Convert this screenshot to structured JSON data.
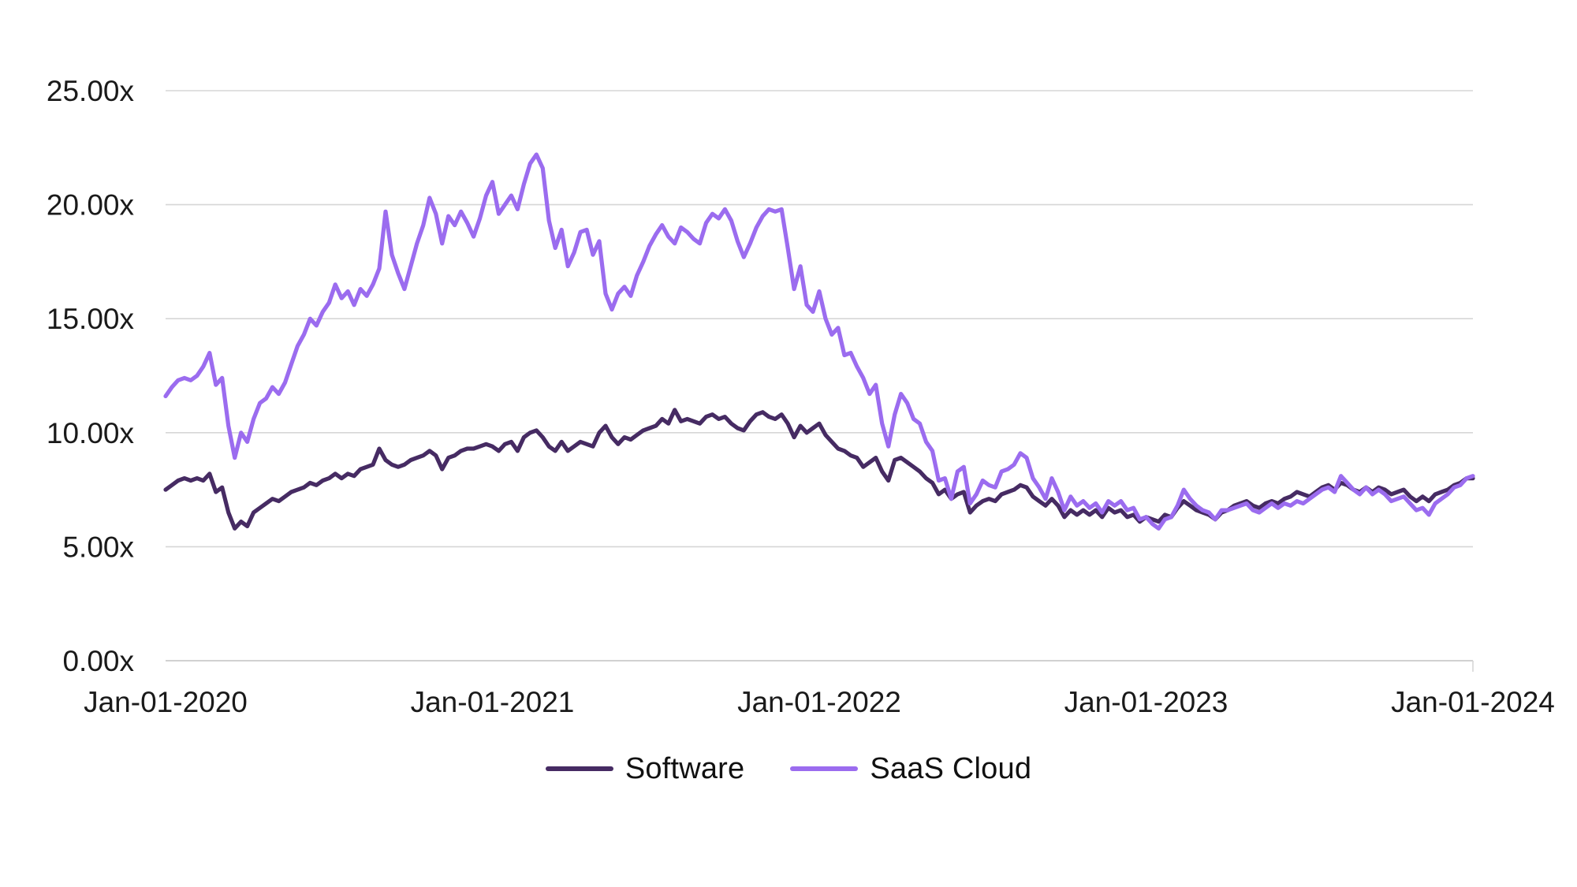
{
  "chart_data": {
    "type": "line",
    "title": "",
    "xlabel": "",
    "ylabel": "",
    "x_start_date": "2020-01-01",
    "x_end_date": "2024-01-01",
    "x_interval": "weekly",
    "x_tick_labels": [
      "Jan-01-2020",
      "Jan-01-2021",
      "Jan-01-2022",
      "Jan-01-2023",
      "Jan-01-2024"
    ],
    "y_ticks": [
      0,
      5,
      10,
      15,
      20,
      25
    ],
    "y_tick_labels": [
      "0.00x",
      "5.00x",
      "10.00x",
      "15.00x",
      "20.00x",
      "25.00x"
    ],
    "ylim": [
      0,
      25
    ],
    "grid": "horizontal",
    "grid_color": "#d6d6d6",
    "baseline_color": "#c2c2c2",
    "legend_position": "bottom-center",
    "series": [
      {
        "name": "Software",
        "color": "#462b63",
        "values": [
          7.5,
          7.7,
          7.9,
          8.0,
          7.9,
          8.0,
          7.9,
          8.2,
          7.4,
          7.6,
          6.5,
          5.8,
          6.1,
          5.9,
          6.5,
          6.7,
          6.9,
          7.1,
          7.0,
          7.2,
          7.4,
          7.5,
          7.6,
          7.8,
          7.7,
          7.9,
          8.0,
          8.2,
          8.0,
          8.2,
          8.1,
          8.4,
          8.5,
          8.6,
          9.3,
          8.8,
          8.6,
          8.5,
          8.6,
          8.8,
          8.9,
          9.0,
          9.2,
          9.0,
          8.4,
          8.9,
          9.0,
          9.2,
          9.3,
          9.3,
          9.4,
          9.5,
          9.4,
          9.2,
          9.5,
          9.6,
          9.2,
          9.8,
          10.0,
          10.1,
          9.8,
          9.4,
          9.2,
          9.6,
          9.2,
          9.4,
          9.6,
          9.5,
          9.4,
          10.0,
          10.3,
          9.8,
          9.5,
          9.8,
          9.7,
          9.9,
          10.1,
          10.2,
          10.3,
          10.6,
          10.4,
          11.0,
          10.5,
          10.6,
          10.5,
          10.4,
          10.7,
          10.8,
          10.6,
          10.7,
          10.4,
          10.2,
          10.1,
          10.5,
          10.8,
          10.9,
          10.7,
          10.6,
          10.8,
          10.4,
          9.8,
          10.3,
          10.0,
          10.2,
          10.4,
          9.9,
          9.6,
          9.3,
          9.2,
          9.0,
          8.9,
          8.5,
          8.7,
          8.9,
          8.3,
          7.9,
          8.8,
          8.9,
          8.7,
          8.5,
          8.3,
          8.0,
          7.8,
          7.3,
          7.5,
          7.1,
          7.3,
          7.4,
          6.5,
          6.8,
          7.0,
          7.1,
          7.0,
          7.3,
          7.4,
          7.5,
          7.7,
          7.6,
          7.2,
          7.0,
          6.8,
          7.1,
          6.8,
          6.3,
          6.6,
          6.4,
          6.6,
          6.4,
          6.6,
          6.3,
          6.7,
          6.5,
          6.6,
          6.3,
          6.4,
          6.1,
          6.3,
          6.2,
          6.1,
          6.4,
          6.3,
          6.7,
          7.0,
          6.8,
          6.6,
          6.5,
          6.4,
          6.2,
          6.5,
          6.6,
          6.8,
          6.9,
          7.0,
          6.8,
          6.7,
          6.9,
          7.0,
          6.9,
          7.1,
          7.2,
          7.4,
          7.3,
          7.2,
          7.4,
          7.6,
          7.7,
          7.5,
          7.8,
          7.7,
          7.5,
          7.4,
          7.6,
          7.4,
          7.6,
          7.5,
          7.3,
          7.4,
          7.5,
          7.2,
          7.0,
          7.2,
          7.0,
          7.3,
          7.4,
          7.5,
          7.7,
          7.8,
          8.0,
          8.0
        ]
      },
      {
        "name": "SaaS Cloud",
        "color": "#9b6cef",
        "values": [
          11.6,
          12.0,
          12.3,
          12.4,
          12.3,
          12.5,
          12.9,
          13.5,
          12.1,
          12.4,
          10.3,
          8.9,
          10.0,
          9.6,
          10.6,
          11.3,
          11.5,
          12.0,
          11.7,
          12.2,
          13.0,
          13.8,
          14.3,
          15.0,
          14.7,
          15.3,
          15.7,
          16.5,
          15.9,
          16.2,
          15.6,
          16.3,
          16.0,
          16.5,
          17.2,
          19.7,
          17.8,
          17.0,
          16.3,
          17.3,
          18.3,
          19.1,
          20.3,
          19.6,
          18.3,
          19.5,
          19.1,
          19.7,
          19.2,
          18.6,
          19.4,
          20.4,
          21.0,
          19.6,
          20.0,
          20.4,
          19.8,
          20.9,
          21.8,
          22.2,
          21.6,
          19.3,
          18.1,
          18.9,
          17.3,
          17.9,
          18.8,
          18.9,
          17.8,
          18.4,
          16.1,
          15.4,
          16.1,
          16.4,
          16.0,
          16.9,
          17.5,
          18.2,
          18.7,
          19.1,
          18.6,
          18.3,
          19.0,
          18.8,
          18.5,
          18.3,
          19.2,
          19.6,
          19.4,
          19.8,
          19.3,
          18.4,
          17.7,
          18.3,
          19.0,
          19.5,
          19.8,
          19.7,
          19.8,
          18.1,
          16.3,
          17.3,
          15.6,
          15.3,
          16.2,
          15.0,
          14.3,
          14.6,
          13.4,
          13.5,
          12.9,
          12.4,
          11.7,
          12.1,
          10.4,
          9.4,
          10.8,
          11.7,
          11.3,
          10.6,
          10.4,
          9.6,
          9.2,
          7.9,
          8.0,
          7.1,
          8.3,
          8.5,
          6.9,
          7.3,
          7.9,
          7.7,
          7.6,
          8.3,
          8.4,
          8.6,
          9.1,
          8.9,
          8.0,
          7.6,
          7.1,
          8.0,
          7.4,
          6.6,
          7.2,
          6.8,
          7.0,
          6.7,
          6.9,
          6.5,
          7.0,
          6.8,
          7.0,
          6.6,
          6.7,
          6.2,
          6.3,
          6.0,
          5.8,
          6.2,
          6.3,
          6.8,
          7.5,
          7.1,
          6.8,
          6.6,
          6.5,
          6.2,
          6.6,
          6.6,
          6.7,
          6.8,
          6.9,
          6.6,
          6.5,
          6.7,
          6.9,
          6.7,
          6.9,
          6.8,
          7.0,
          6.9,
          7.1,
          7.3,
          7.5,
          7.6,
          7.4,
          8.1,
          7.8,
          7.5,
          7.3,
          7.6,
          7.3,
          7.5,
          7.3,
          7.0,
          7.1,
          7.2,
          6.9,
          6.6,
          6.7,
          6.4,
          6.9,
          7.1,
          7.3,
          7.6,
          7.7,
          8.0,
          8.1
        ]
      }
    ]
  }
}
